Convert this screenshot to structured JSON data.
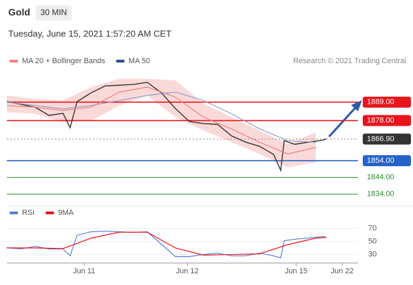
{
  "header": {
    "title": "Gold",
    "interval": "30 MIN",
    "timestamp": "Tuesday, June 15, 2021 1:57:20 AM CET",
    "credit": "Research © 2021 Trading Central"
  },
  "chart_data": [
    {
      "type": "line",
      "xlim": [
        0,
        100
      ],
      "ylim": [
        1831,
        1909
      ],
      "series": [
        {
          "color": "#333333",
          "x": [
            0,
            4,
            8,
            12,
            16,
            18,
            20,
            24,
            28,
            32,
            36,
            40,
            44,
            48,
            52,
            56,
            60,
            64,
            68,
            72,
            76,
            78,
            79,
            82,
            86,
            90,
            91
          ],
          "values": [
            1889.3,
            1887.7,
            1886.0,
            1881.1,
            1882.3,
            1873.7,
            1889.3,
            1894.6,
            1898.7,
            1899.1,
            1899.6,
            1900.8,
            1894.6,
            1885.2,
            1877.4,
            1876.2,
            1875.7,
            1868.8,
            1865.1,
            1862.6,
            1857.7,
            1848.2,
            1865.9,
            1863.8,
            1865.1,
            1866.3,
            1867.1
          ]
        },
        {
          "name": "MA 20 + Bollinger Bands",
          "color": "#f08080",
          "band_color": "#fbd9d9",
          "x": [
            0,
            8,
            16,
            24,
            32,
            40,
            48,
            56,
            64,
            72,
            80,
            88
          ],
          "values": [
            1887,
            1886,
            1884,
            1886,
            1895,
            1898,
            1892,
            1880,
            1873,
            1865,
            1858,
            1862
          ],
          "upper": [
            1893,
            1891,
            1890,
            1898,
            1903,
            1903,
            1902,
            1888,
            1880,
            1872,
            1864,
            1871
          ],
          "lower": [
            1883,
            1882,
            1877,
            1878,
            1887,
            1893,
            1880,
            1872,
            1865,
            1858,
            1850,
            1853
          ]
        },
        {
          "name": "MA 50",
          "color": "#8fa0c8",
          "legend_color": "#2b4f8c",
          "x": [
            0,
            8,
            16,
            24,
            32,
            40,
            48,
            56,
            64,
            72,
            80,
            88
          ],
          "values": [
            1889,
            1887,
            1885,
            1887,
            1890,
            1893,
            1895,
            1890,
            1882,
            1873,
            1866,
            1865
          ]
        }
      ],
      "levels": [
        {
          "value": 1889,
          "label": "1889.00",
          "color": "#e8141b",
          "box": true
        },
        {
          "value": 1878,
          "label": "1878.00",
          "color": "#e8141b",
          "box": true
        },
        {
          "value": 1866.9,
          "label": "1866.90",
          "color": "#333333",
          "box": true,
          "dotted": true
        },
        {
          "value": 1854,
          "label": "1854.00",
          "color": "#2563c9",
          "box": true
        },
        {
          "value": 1844,
          "label": "1844.00",
          "color": "#2e8b2e",
          "box": false
        },
        {
          "value": 1834,
          "label": "1834.00",
          "color": "#2e8b2e",
          "box": false
        }
      ]
    },
    {
      "type": "line",
      "xlim": [
        0,
        100
      ],
      "ylim": [
        18,
        82
      ],
      "yticks": [
        30,
        50,
        70
      ],
      "xticks": [
        {
          "value": 22,
          "label": "Jun 11"
        },
        {
          "value": 51.4,
          "label": "Jun 12"
        },
        {
          "value": 82.4,
          "label": "Jun 15"
        },
        {
          "value": 95.5,
          "label": "Jun 22"
        }
      ],
      "series": [
        {
          "name": "RSI",
          "color": "#5b7fd6",
          "x": [
            0,
            4,
            8,
            12,
            16,
            18,
            20,
            24,
            28,
            32,
            36,
            40,
            44,
            48,
            52,
            56,
            60,
            64,
            68,
            72,
            76,
            78,
            79,
            82,
            86,
            90,
            91
          ],
          "values": [
            40.5,
            38.4,
            42.6,
            38.4,
            38.4,
            27.9,
            59.5,
            64.7,
            65.8,
            64.7,
            63.7,
            64.7,
            45.8,
            26.8,
            26.8,
            30,
            32.1,
            27.9,
            27.9,
            32.1,
            27.9,
            24.7,
            51.1,
            53.2,
            55.3,
            57.4,
            56.3
          ]
        },
        {
          "name": "9MA",
          "color": "#e8141b",
          "x": [
            0,
            8,
            16,
            24,
            32,
            40,
            48,
            56,
            64,
            72,
            80,
            88,
            91
          ],
          "values": [
            40,
            40,
            39,
            55,
            64,
            64,
            40,
            29,
            30,
            31,
            45,
            55,
            56
          ]
        }
      ]
    }
  ]
}
